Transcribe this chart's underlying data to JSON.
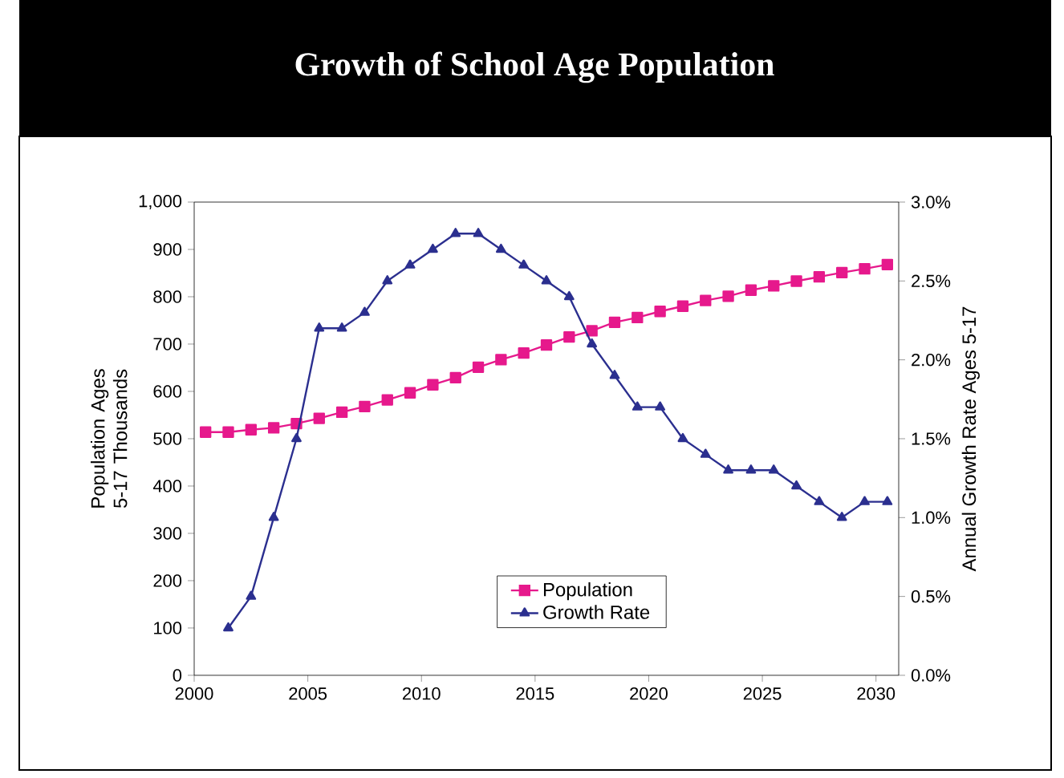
{
  "chart_data": {
    "type": "line",
    "title": "Growth of School Age Population",
    "ylabel": "Population Ages 5-17 Thousands",
    "y2label": "Annual Growth Rate Ages 5-17",
    "xlim": [
      2000,
      2031
    ],
    "xticks": [
      2000,
      2005,
      2010,
      2015,
      2020,
      2025,
      2030
    ],
    "ylim": [
      0,
      1000
    ],
    "yticks": [
      0,
      100,
      200,
      300,
      400,
      500,
      600,
      700,
      800,
      900,
      {
        "value": 1000,
        "label": "1,000"
      }
    ],
    "y2lim": [
      0,
      3
    ],
    "y2ticks": [
      {
        "value": 0,
        "label": "0.0%"
      },
      {
        "value": 0.5,
        "label": "0.5%"
      },
      {
        "value": 1,
        "label": "1.0%"
      },
      {
        "value": 1.5,
        "label": "1.5%"
      },
      {
        "value": 2,
        "label": "2.0%"
      },
      {
        "value": 2.5,
        "label": "2.5%"
      },
      {
        "value": 3,
        "label": "3.0%"
      }
    ],
    "legend": "bottom",
    "grid": false,
    "series": [
      {
        "name": "Population",
        "color": "#e6198c",
        "marker": "square",
        "x": [
          2000.5,
          2001.5,
          2002.5,
          2003.5,
          2004.5,
          2005.5,
          2006.5,
          2007.5,
          2008.5,
          2009.5,
          2010.5,
          2011.5,
          2012.5,
          2013.5,
          2014.5,
          2015.5,
          2016.5,
          2017.5,
          2018.5,
          2019.5,
          2020.5,
          2021.5,
          2022.5,
          2023.5,
          2024.5,
          2025.5,
          2026.5,
          2027.5,
          2028.5,
          2029.5,
          2030.5
        ],
        "values": [
          514,
          514,
          519,
          523,
          532,
          543,
          556,
          568,
          582,
          597,
          614,
          629,
          651,
          667,
          681,
          698,
          715,
          728,
          746,
          756,
          769,
          780,
          792,
          801,
          814,
          823,
          833,
          842,
          851,
          859,
          868
        ]
      },
      {
        "name": "Growth Rate",
        "color": "#2b2f8f",
        "marker": "triangle",
        "axis": "y2",
        "x": [
          2001.5,
          2002.5,
          2003.5,
          2004.5,
          2005.5,
          2006.5,
          2007.5,
          2008.5,
          2009.5,
          2010.5,
          2011.5,
          2012.5,
          2013.5,
          2014.5,
          2015.5,
          2016.5,
          2017.5,
          2018.5,
          2019.5,
          2020.5,
          2021.5,
          2022.5,
          2023.5,
          2024.5,
          2025.5,
          2026.5,
          2027.5,
          2028.5,
          2029.5,
          2030.5
        ],
        "values": [
          0.3,
          0.5,
          1.0,
          1.5,
          2.2,
          2.2,
          2.3,
          2.5,
          2.6,
          2.7,
          2.8,
          2.8,
          2.7,
          2.6,
          2.5,
          2.4,
          2.1,
          1.9,
          1.7,
          1.7,
          1.5,
          1.4,
          1.3,
          1.3,
          1.3,
          1.2,
          1.1,
          1.0,
          1.1,
          1.1
        ]
      }
    ]
  }
}
